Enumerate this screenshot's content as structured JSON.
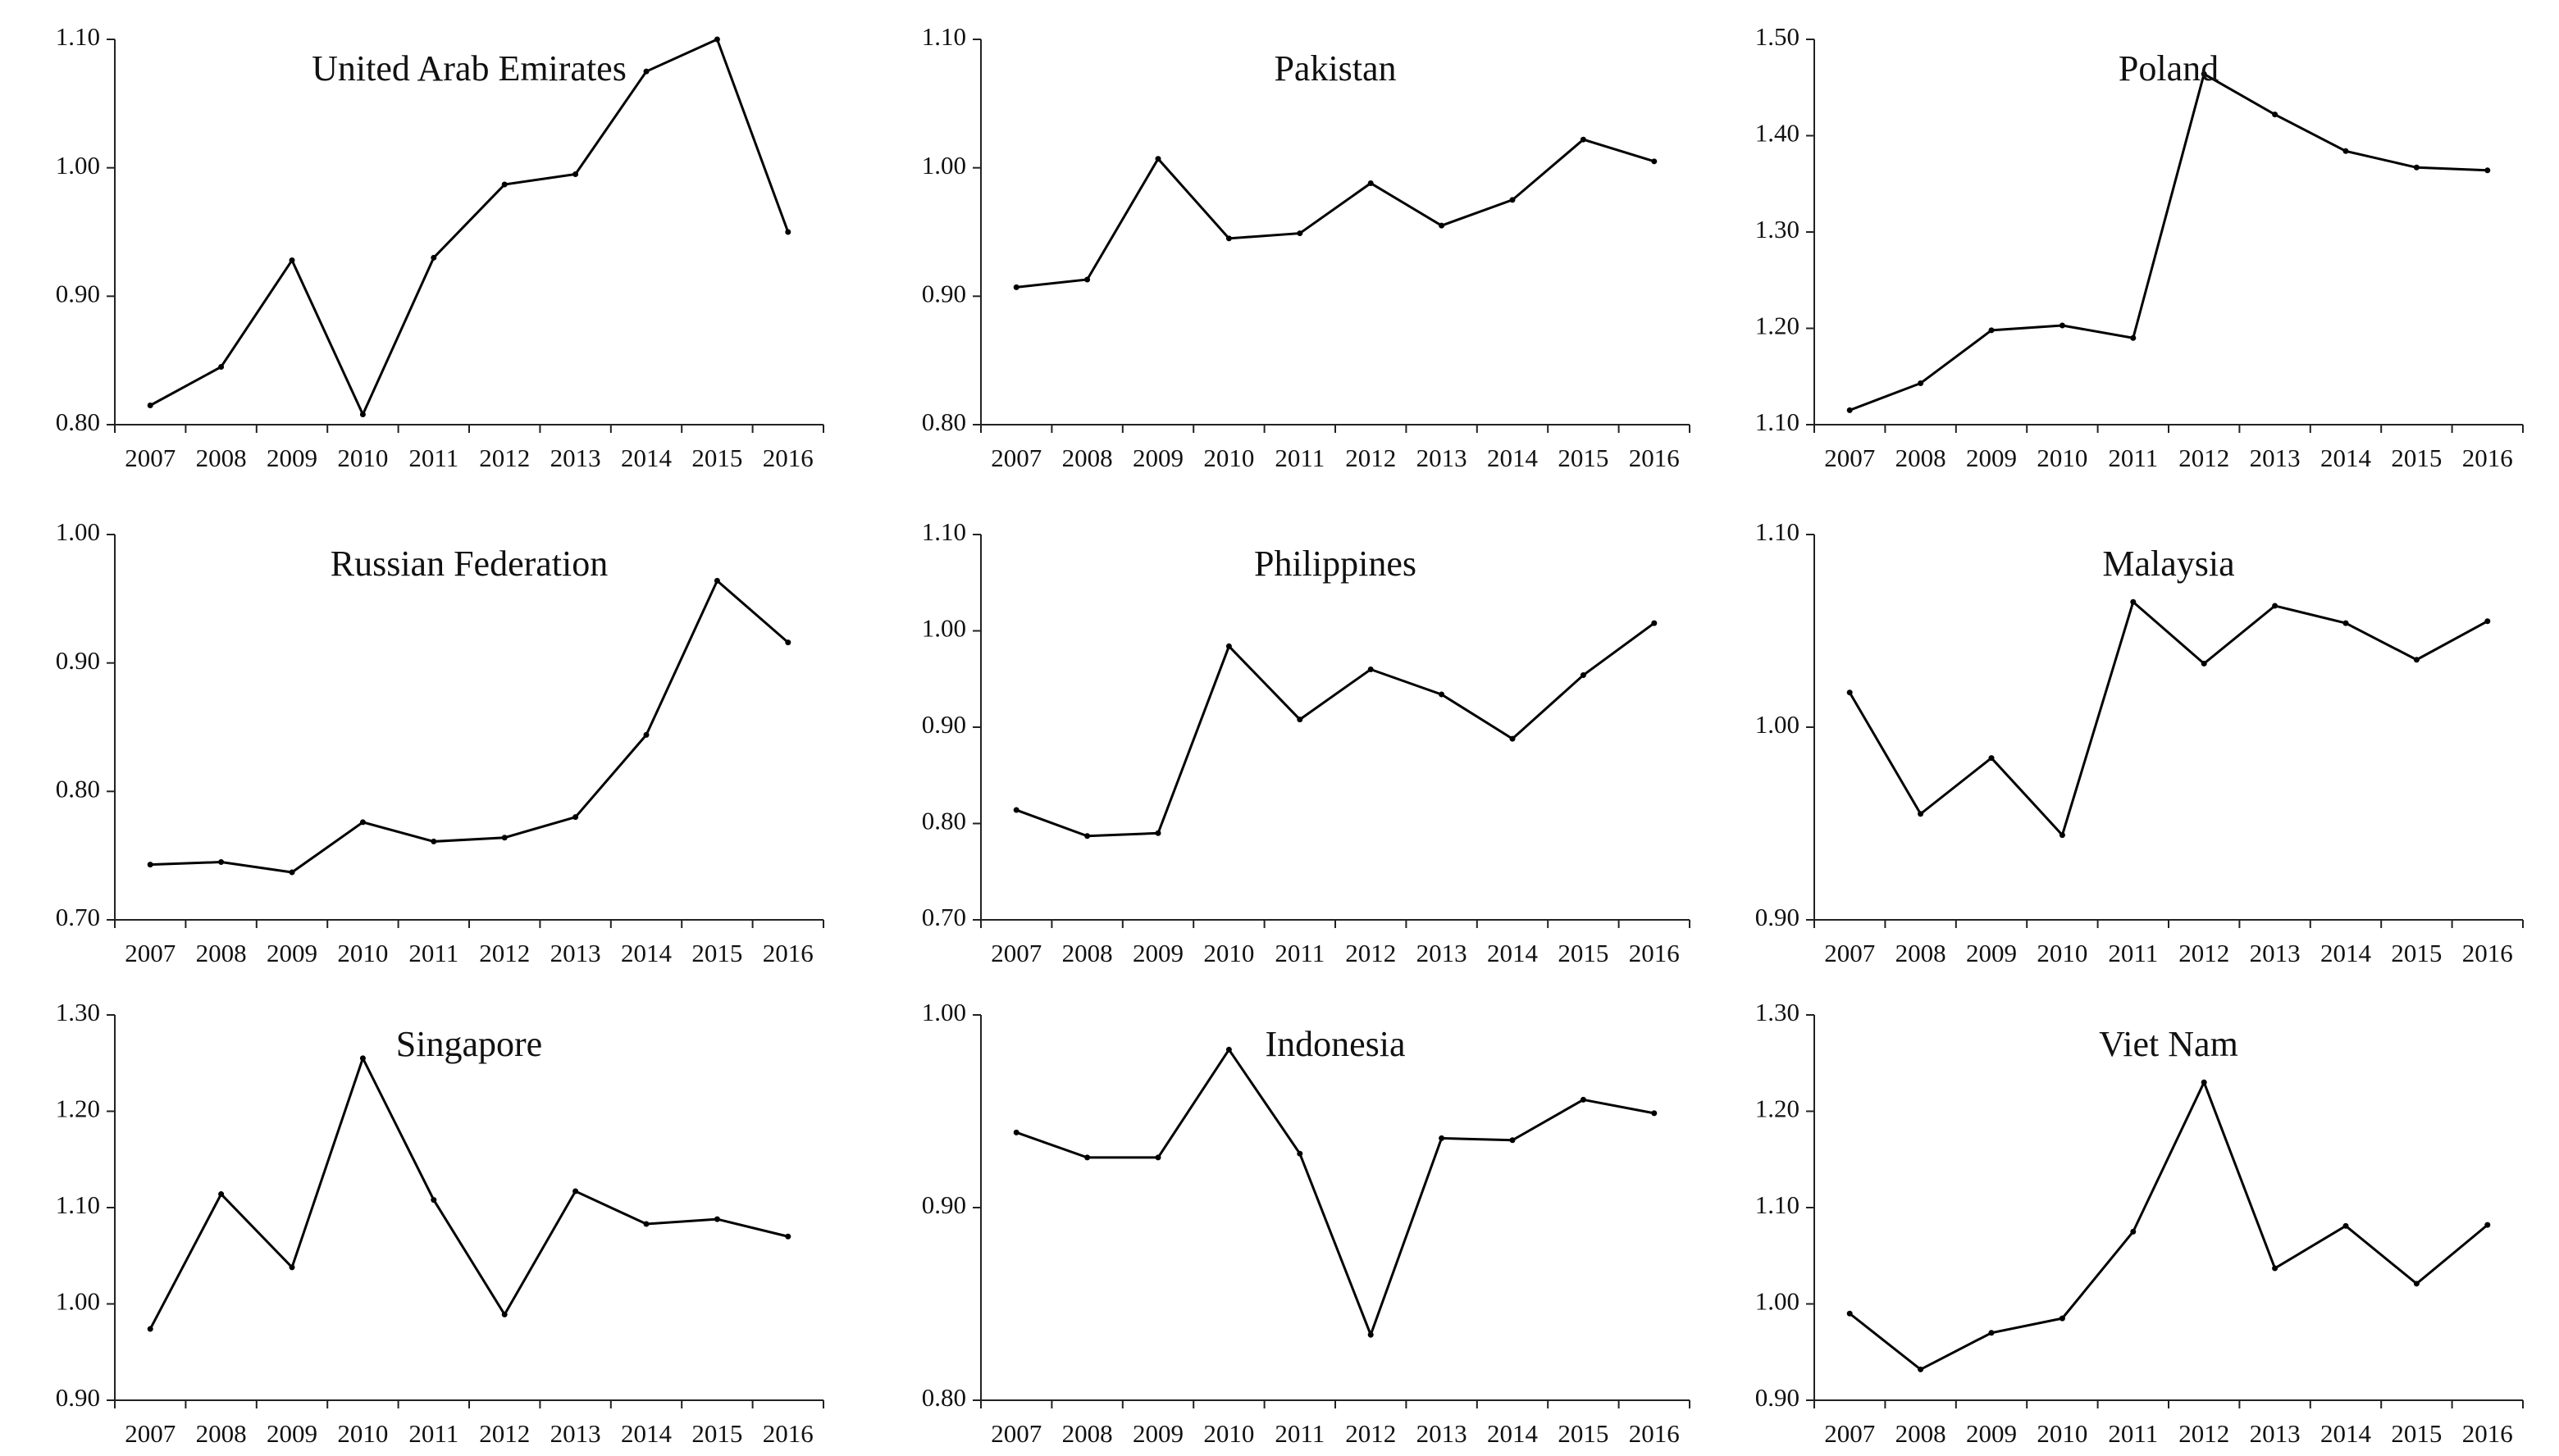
{
  "chart_data": [
    {
      "type": "line",
      "title": "United Arab Emirates",
      "color": "#000000",
      "categories": [
        "2007",
        "2008",
        "2009",
        "2010",
        "2011",
        "2012",
        "2013",
        "2014",
        "2015",
        "2016"
      ],
      "values": [
        0.815,
        0.845,
        0.928,
        0.808,
        0.93,
        0.987,
        0.995,
        1.075,
        1.1,
        0.95
      ],
      "ylim": [
        0.8,
        1.1
      ],
      "yticks": [
        {
          "value": 0.8,
          "label": "0.80"
        },
        {
          "value": 0.9,
          "label": "0.90"
        },
        {
          "value": 1.0,
          "label": "1.00"
        },
        {
          "value": 1.1,
          "label": "1.10"
        }
      ]
    },
    {
      "type": "line",
      "title": "Pakistan",
      "color": "#000000",
      "categories": [
        "2007",
        "2008",
        "2009",
        "2010",
        "2011",
        "2012",
        "2013",
        "2014",
        "2015",
        "2016"
      ],
      "values": [
        0.907,
        0.913,
        1.007,
        0.945,
        0.949,
        0.988,
        0.955,
        0.975,
        1.022,
        1.005
      ],
      "ylim": [
        0.8,
        1.1
      ],
      "yticks": [
        {
          "value": 0.8,
          "label": "0.80"
        },
        {
          "value": 0.9,
          "label": "0.90"
        },
        {
          "value": 1.0,
          "label": "1.00"
        },
        {
          "value": 1.1,
          "label": "1.10"
        }
      ]
    },
    {
      "type": "line",
      "title": "Poland",
      "color": "#000000",
      "categories": [
        "2007",
        "2008",
        "2009",
        "2010",
        "2011",
        "2012",
        "2013",
        "2014",
        "2015",
        "2016"
      ],
      "values": [
        1.115,
        1.143,
        1.198,
        1.203,
        1.19,
        1.464,
        1.422,
        1.384,
        1.367,
        1.364
      ],
      "ylim": [
        1.1,
        1.5
      ],
      "yticks": [
        {
          "value": 1.1,
          "label": "1.10"
        },
        {
          "value": 1.2,
          "label": "1.20"
        },
        {
          "value": 1.3,
          "label": "1.30"
        },
        {
          "value": 1.4,
          "label": "1.40"
        },
        {
          "value": 1.5,
          "label": "1.50"
        }
      ]
    },
    {
      "type": "line",
      "title": "Russian Federation",
      "color": "#000000",
      "categories": [
        "2007",
        "2008",
        "2009",
        "2010",
        "2011",
        "2012",
        "2013",
        "2014",
        "2015",
        "2016"
      ],
      "values": [
        0.743,
        0.745,
        0.737,
        0.776,
        0.761,
        0.764,
        0.78,
        0.844,
        0.964,
        0.916
      ],
      "ylim": [
        0.7,
        1.0
      ],
      "yticks": [
        {
          "value": 0.7,
          "label": "0.70"
        },
        {
          "value": 0.8,
          "label": "0.80"
        },
        {
          "value": 0.9,
          "label": "0.90"
        },
        {
          "value": 1.0,
          "label": "1.00"
        }
      ]
    },
    {
      "type": "line",
      "title": "Philippines",
      "color": "#000000",
      "categories": [
        "2007",
        "2008",
        "2009",
        "2010",
        "2011",
        "2012",
        "2013",
        "2014",
        "2015",
        "2016"
      ],
      "values": [
        0.814,
        0.787,
        0.79,
        0.984,
        0.908,
        0.96,
        0.934,
        0.888,
        0.954,
        1.008
      ],
      "ylim": [
        0.7,
        1.1
      ],
      "yticks": [
        {
          "value": 0.7,
          "label": "0.70"
        },
        {
          "value": 0.8,
          "label": "0.80"
        },
        {
          "value": 0.9,
          "label": "0.90"
        },
        {
          "value": 1.0,
          "label": "1.00"
        },
        {
          "value": 1.1,
          "label": "1.10"
        }
      ]
    },
    {
      "type": "line",
      "title": "Malaysia",
      "color": "#000000",
      "categories": [
        "2007",
        "2008",
        "2009",
        "2010",
        "2011",
        "2012",
        "2013",
        "2014",
        "2015",
        "2016"
      ],
      "values": [
        1.018,
        0.955,
        0.984,
        0.944,
        1.065,
        1.033,
        1.063,
        1.054,
        1.035,
        1.055
      ],
      "ylim": [
        0.9,
        1.1
      ],
      "yticks": [
        {
          "value": 0.9,
          "label": "0.90"
        },
        {
          "value": 1.0,
          "label": "1.00"
        },
        {
          "value": 1.1,
          "label": "1.10"
        }
      ]
    },
    {
      "type": "line",
      "title": "Singapore",
      "color": "#000000",
      "categories": [
        "2007",
        "2008",
        "2009",
        "2010",
        "2011",
        "2012",
        "2013",
        "2014",
        "2015",
        "2016"
      ],
      "values": [
        0.974,
        1.114,
        1.038,
        1.255,
        1.108,
        0.989,
        1.117,
        1.083,
        1.088,
        1.07
      ],
      "ylim": [
        0.9,
        1.3
      ],
      "yticks": [
        {
          "value": 0.9,
          "label": "0.90"
        },
        {
          "value": 1.0,
          "label": "1.00"
        },
        {
          "value": 1.1,
          "label": "1.10"
        },
        {
          "value": 1.2,
          "label": "1.20"
        },
        {
          "value": 1.3,
          "label": "1.30"
        }
      ]
    },
    {
      "type": "line",
      "title": "Indonesia",
      "color": "#000000",
      "categories": [
        "2007",
        "2008",
        "2009",
        "2010",
        "2011",
        "2012",
        "2013",
        "2014",
        "2015",
        "2016"
      ],
      "values": [
        0.939,
        0.926,
        0.926,
        0.982,
        0.928,
        0.834,
        0.936,
        0.935,
        0.956,
        0.949
      ],
      "ylim": [
        0.8,
        1.0
      ],
      "yticks": [
        {
          "value": 0.8,
          "label": "0.80"
        },
        {
          "value": 0.9,
          "label": "0.90"
        },
        {
          "value": 1.0,
          "label": "1.00"
        }
      ]
    },
    {
      "type": "line",
      "title": "Viet Nam",
      "color": "#000000",
      "categories": [
        "2007",
        "2008",
        "2009",
        "2010",
        "2011",
        "2012",
        "2013",
        "2014",
        "2015",
        "2016"
      ],
      "values": [
        0.99,
        0.932,
        0.97,
        0.985,
        1.075,
        1.23,
        1.037,
        1.081,
        1.021,
        1.082
      ],
      "ylim": [
        0.9,
        1.3
      ],
      "yticks": [
        {
          "value": 0.9,
          "label": "0.90"
        },
        {
          "value": 1.0,
          "label": "1.00"
        },
        {
          "value": 1.1,
          "label": "1.10"
        },
        {
          "value": 1.2,
          "label": "1.20"
        },
        {
          "value": 1.3,
          "label": "1.30"
        }
      ]
    }
  ]
}
